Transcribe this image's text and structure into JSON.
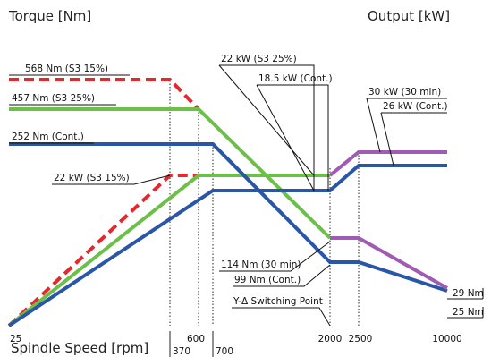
{
  "chart_data": {
    "type": "line",
    "title": "",
    "ylabel_left": "Torque [Nm]",
    "ylabel_right": "Output [kW]",
    "xlabel": "Spindle Speed [rpm]",
    "x_ticks": [
      "25",
      "370",
      "600",
      "700",
      "2000",
      "2500",
      "10000"
    ],
    "series": [
      {
        "style": "dashed",
        "color": "#e8262b",
        "points": [
          [
            0,
            568
          ],
          [
            370,
            568
          ],
          [
            600,
            457
          ]
        ]
      },
      {
        "style": "dashed",
        "color": "#e8262b",
        "points": [
          [
            25,
            0
          ],
          [
            370,
            22
          ],
          [
            600,
            22
          ]
        ]
      },
      {
        "style": "solid",
        "color": "#6cc04a",
        "points": [
          [
            0,
            457
          ],
          [
            600,
            457
          ],
          [
            2000,
            114
          ]
        ]
      },
      {
        "style": "solid",
        "color": "#6cc04a",
        "points": [
          [
            25,
            0
          ],
          [
            600,
            22
          ],
          [
            2000,
            22
          ]
        ]
      },
      {
        "style": "solid",
        "color": "#2a56a8",
        "points": [
          [
            0,
            252
          ],
          [
            700,
            252
          ],
          [
            2000,
            99
          ],
          [
            2500,
            99
          ],
          [
            10000,
            25
          ]
        ]
      },
      {
        "style": "solid",
        "color": "#2a56a8",
        "points": [
          [
            25,
            0
          ],
          [
            700,
            18.5
          ],
          [
            2000,
            18.5
          ],
          [
            2500,
            26
          ],
          [
            10000,
            26
          ]
        ]
      },
      {
        "style": "solid",
        "color": "#a05cb4",
        "points": [
          [
            2000,
            114
          ],
          [
            2500,
            114
          ],
          [
            10000,
            29
          ]
        ]
      },
      {
        "style": "solid",
        "color": "#a05cb4",
        "points": [
          [
            2000,
            22
          ],
          [
            2500,
            30
          ],
          [
            10000,
            30
          ]
        ]
      }
    ],
    "annotations": [
      "568 Nm (S3 15%)",
      "457 Nm (S3 25%)",
      "252 Nm (Cont.)",
      "22 kW (S3 15%)",
      "22 kW (S3 25%)",
      "18.5 kW (Cont.)",
      "30 kW (30 min)",
      "26 kW (Cont.)",
      "114 Nm (30 min)",
      "99 Nm (Cont.)",
      "Y-Δ Switching Point",
      "29 Nm",
      "25 Nm"
    ],
    "grid": false
  }
}
